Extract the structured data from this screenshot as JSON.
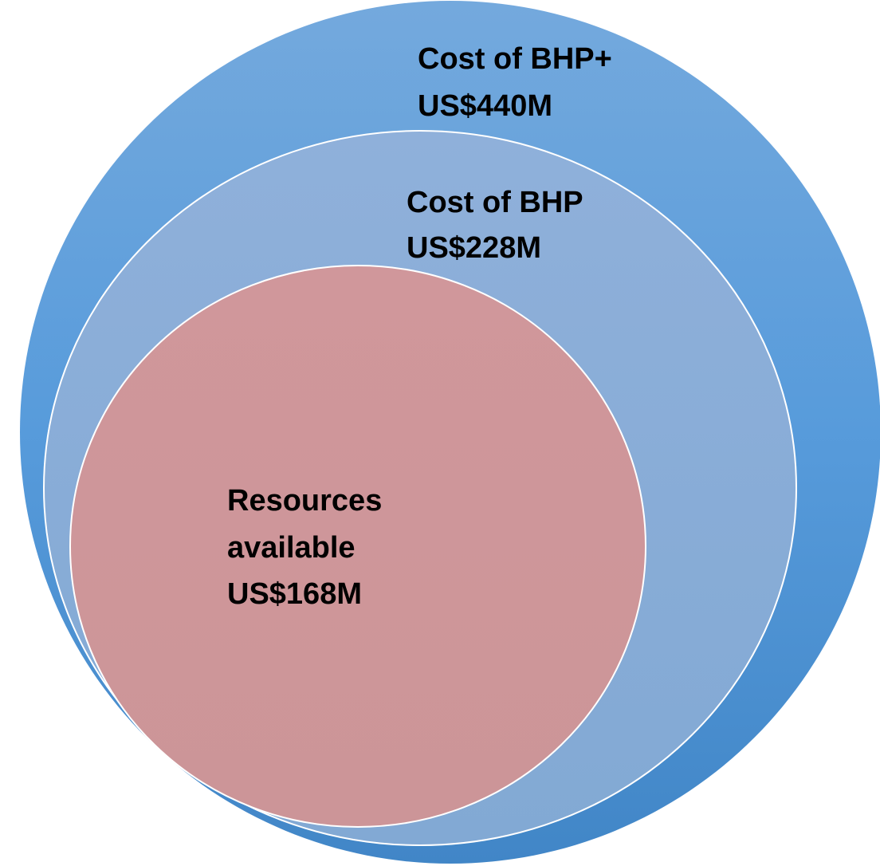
{
  "circles": [
    {
      "lines": [
        "Cost of BHP+",
        "US$440M"
      ]
    },
    {
      "lines": [
        "Cost of BHP",
        "US$228M"
      ]
    },
    {
      "lines": [
        "Resources",
        "available",
        "US$168M"
      ]
    }
  ]
}
